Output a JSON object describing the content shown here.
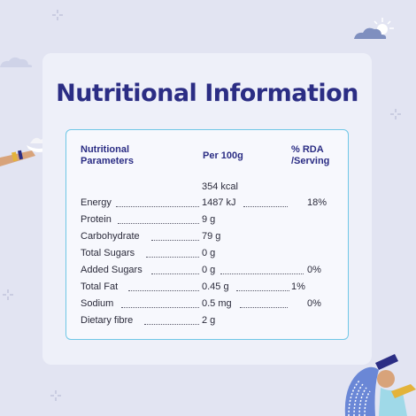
{
  "title": "Nutritional Information",
  "header": {
    "param_line1": "Nutritional",
    "param_line2": "Parameters",
    "per100": "Per 100g",
    "rda_line1": "% RDA",
    "rda_line2": "/Serving"
  },
  "kcal": "354 kcal",
  "rows": [
    {
      "label": "Energy",
      "value": "1487 kJ",
      "rda": "18%"
    },
    {
      "label": "Protein",
      "value": "9 g",
      "rda": ""
    },
    {
      "label": "Carbohydrate",
      "value": "79 g",
      "rda": ""
    },
    {
      "label": "Total Sugars",
      "value": "0 g",
      "rda": ""
    },
    {
      "label": "Added Sugars",
      "value": "0 g",
      "rda": "0%"
    },
    {
      "label": "Total Fat",
      "value": "0.45 g",
      "rda": "1%"
    },
    {
      "label": "Sodium",
      "value": "0.5 mg",
      "rda": "0%"
    },
    {
      "label": "Dietary fibre",
      "value": "2 g",
      "rda": ""
    }
  ],
  "colors": {
    "background": "#e2e4f2",
    "card": "#eef0f9",
    "title": "#2b2d84",
    "panel_border": "#6fc7e6"
  },
  "icons": [
    "sun-cloud-icon",
    "cloud-icon",
    "hand-with-bowl-illustration",
    "woman-with-hair-illustration",
    "sparkle-icon"
  ]
}
